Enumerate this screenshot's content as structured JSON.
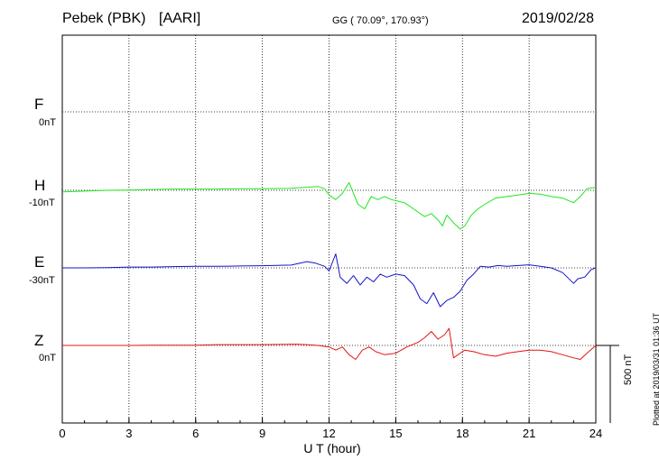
{
  "header": {
    "station": "Pebek (PBK)",
    "network": "[AARI]",
    "coords": "GG ( 70.09°, 170.93°)",
    "date": "2019/02/28"
  },
  "footer": {
    "plotted": "Plotted at 2019/03/31 01:36 UT"
  },
  "chart_data": {
    "type": "line",
    "xlabel": "U T (hour)",
    "xlim": [
      0,
      24
    ],
    "xticks": [
      "0",
      "3",
      "6",
      "9",
      "12",
      "15",
      "18",
      "21",
      "24"
    ],
    "grid": true,
    "scale_bar": "500 nT",
    "channels": [
      {
        "name": "F",
        "baseline": "0nT",
        "color": "#f5a000"
      },
      {
        "name": "H",
        "baseline": "-10nT",
        "color": "#1ee61e"
      },
      {
        "name": "E",
        "baseline": "-30nT",
        "color": "#1414c8"
      },
      {
        "name": "Z",
        "baseline": "0nT",
        "color": "#e61414"
      }
    ],
    "series": [
      {
        "name": "H",
        "unit": "nT relative to baseline",
        "x": [
          0,
          1,
          2,
          3,
          4,
          5,
          6,
          7,
          8,
          9,
          10.2,
          11,
          11.5,
          11.8,
          12,
          12.3,
          12.6,
          12.9,
          13.1,
          13.3,
          13.6,
          13.9,
          14.2,
          14.5,
          14.8,
          15.1,
          15.4,
          15.7,
          16,
          16.3,
          16.6,
          16.9,
          17.1,
          17.3,
          17.6,
          17.9,
          18.1,
          18.4,
          18.7,
          19,
          19.5,
          20,
          20.5,
          21,
          21.5,
          22,
          22.5,
          23,
          23.3,
          23.6,
          24
        ],
        "y": [
          -10,
          -5,
          0,
          2,
          5,
          8,
          8,
          8,
          10,
          10,
          12,
          20,
          25,
          10,
          -30,
          -60,
          -20,
          50,
          -20,
          -90,
          -120,
          -40,
          -60,
          -40,
          -60,
          -70,
          -80,
          -110,
          -140,
          -170,
          -150,
          -190,
          -230,
          -160,
          -210,
          -250,
          -230,
          -160,
          -120,
          -90,
          -50,
          -40,
          -30,
          -20,
          -25,
          -40,
          -50,
          -80,
          -40,
          10,
          20
        ]
      },
      {
        "name": "E",
        "unit": "nT relative to baseline",
        "x": [
          0,
          1,
          2,
          3,
          4,
          5,
          6,
          7,
          8,
          9,
          10.3,
          11,
          11.4,
          11.8,
          12,
          12.3,
          12.5,
          12.8,
          13.1,
          13.4,
          13.7,
          14,
          14.3,
          14.6,
          15,
          15.4,
          15.8,
          16.1,
          16.4,
          16.7,
          17,
          17.3,
          17.6,
          17.9,
          18.2,
          18.5,
          18.8,
          19.2,
          19.6,
          20,
          20.5,
          21,
          21.5,
          22,
          22.5,
          23,
          23.2,
          23.5,
          23.8,
          24
        ],
        "y": [
          0,
          0,
          2,
          5,
          5,
          8,
          10,
          10,
          12,
          14,
          18,
          40,
          30,
          10,
          -20,
          90,
          -60,
          -100,
          -50,
          -110,
          -60,
          -90,
          -40,
          -60,
          -40,
          -50,
          -110,
          -200,
          -230,
          -160,
          -250,
          -210,
          -190,
          -150,
          -80,
          -40,
          10,
          5,
          15,
          10,
          15,
          20,
          10,
          0,
          -30,
          -100,
          -70,
          -60,
          -10,
          0
        ]
      },
      {
        "name": "Z",
        "unit": "nT relative to baseline",
        "x": [
          0,
          1,
          2,
          3,
          4,
          5,
          6,
          7,
          8,
          9,
          10.5,
          11,
          11.5,
          12,
          12.3,
          12.6,
          12.9,
          13.2,
          13.5,
          13.8,
          14.1,
          14.5,
          15,
          15.5,
          16,
          16.3,
          16.6,
          16.9,
          17.2,
          17.4,
          17.6,
          17.8,
          18.1,
          18.5,
          19,
          19.5,
          20,
          20.5,
          21,
          21.5,
          22,
          22.5,
          23,
          23.3,
          23.6,
          24
        ],
        "y": [
          0,
          0,
          0,
          0,
          2,
          2,
          2,
          5,
          5,
          5,
          8,
          5,
          0,
          -10,
          -30,
          -10,
          -60,
          -90,
          -30,
          -10,
          -40,
          -60,
          -50,
          -10,
          20,
          50,
          90,
          40,
          70,
          110,
          -80,
          -60,
          -30,
          -40,
          -60,
          -70,
          -50,
          -40,
          -30,
          -30,
          -40,
          -60,
          -80,
          -90,
          -50,
          0
        ]
      }
    ]
  }
}
